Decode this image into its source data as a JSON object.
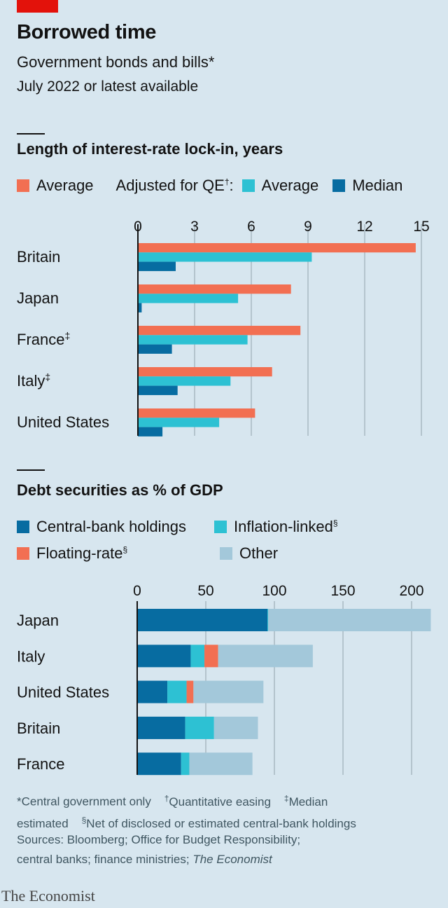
{
  "header": {
    "title": "Borrowed time",
    "subtitle": "Government bonds and bills*",
    "date": "July 2022 or latest available"
  },
  "colors": {
    "average": "#f26f52",
    "qe_average": "#2dc1d3",
    "median": "#076ca1",
    "central_bank": "#076ca1",
    "inflation_linked": "#2dc1d3",
    "floating": "#f26f52",
    "other": "#a3c8da",
    "background": "#d7e6ef",
    "grid": "#a9b8c2"
  },
  "chart_data": [
    {
      "type": "bar",
      "orientation": "horizontal",
      "title": "Length of interest-rate lock-in, years",
      "legend": {
        "average": "Average",
        "qe_prefix": "Adjusted for QE",
        "qe_mark": "†",
        "qe_suffix": ":",
        "qe_average": "Average",
        "median": "Median"
      },
      "categories": [
        "Britain",
        "Japan",
        "France",
        "Italy",
        "United States"
      ],
      "category_marks": [
        "",
        "",
        "‡",
        "‡",
        ""
      ],
      "xlim": [
        0,
        15
      ],
      "ticks": [
        "0",
        "3",
        "6",
        "9",
        "12",
        "15"
      ],
      "tick_values": [
        0,
        3,
        6,
        9,
        12,
        15
      ],
      "grid": true,
      "legend_placement": "top",
      "series": [
        {
          "name": "Average",
          "values": [
            14.7,
            8.1,
            8.6,
            7.1,
            6.2
          ]
        },
        {
          "name": "Adjusted for QE: Average",
          "values": [
            9.2,
            5.3,
            5.8,
            4.9,
            4.3
          ]
        },
        {
          "name": "Adjusted for QE: Median",
          "values": [
            2.0,
            0.2,
            1.8,
            2.1,
            1.3
          ]
        }
      ]
    },
    {
      "type": "bar",
      "orientation": "horizontal",
      "stacked": true,
      "title": "Debt securities as % of GDP",
      "legend": {
        "central_bank": "Central-bank holdings",
        "inflation_linked": "Inflation-linked",
        "floating": "Floating-rate",
        "other": "Other",
        "mark": "§"
      },
      "categories": [
        "Japan",
        "Italy",
        "United States",
        "Britain",
        "France"
      ],
      "xlim": [
        0,
        215
      ],
      "ticks": [
        "0",
        "50",
        "100",
        "150",
        "200"
      ],
      "tick_values": [
        0,
        50,
        100,
        150,
        200
      ],
      "grid": true,
      "legend_placement": "top",
      "series": [
        {
          "name": "Central-bank holdings",
          "values": [
            95,
            39,
            22,
            35,
            32
          ]
        },
        {
          "name": "Inflation-linked",
          "values": [
            0.5,
            10,
            14,
            21,
            6
          ]
        },
        {
          "name": "Floating-rate",
          "values": [
            0,
            10,
            5,
            0,
            0
          ]
        },
        {
          "name": "Other",
          "values": [
            118.5,
            69,
            51,
            32,
            46
          ]
        }
      ]
    }
  ],
  "footer": {
    "note1": "*Central government only",
    "note2_mark": "†",
    "note2": "Quantitative easing",
    "note3_mark": "‡",
    "note3a": "Median",
    "note3b": "estimated",
    "note4_mark": "§",
    "note4": "Net of disclosed or estimated central-bank holdings",
    "sources1": "Sources: Bloomberg; Office for Budget Responsibility;",
    "sources2": "central banks; finance ministries; ",
    "sources_italic": "The Economist",
    "logo": "The Economist"
  }
}
